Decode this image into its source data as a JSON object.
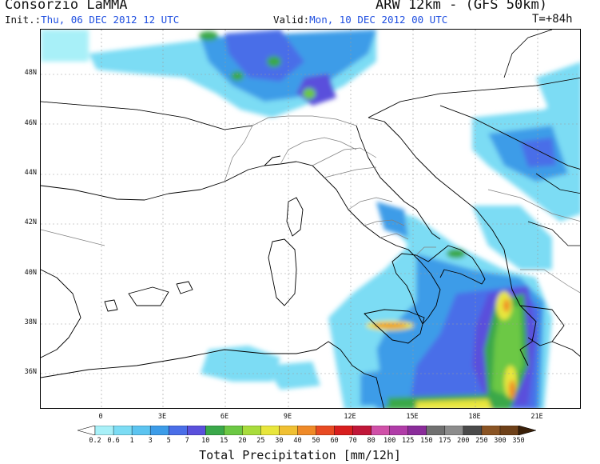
{
  "header": {
    "title_left": "Consorzio LaMMA",
    "title_right": "ARW 12km - (GFS 50km)",
    "init_label": "Init.:",
    "init_value": "Thu, 06 DEC 2012  12 UTC",
    "valid_label": "Valid:",
    "valid_value": "Mon, 10 DEC 2012  00 UTC",
    "forecast_step": "T=+84h"
  },
  "map": {
    "lat_labels": [
      "48N",
      "46N",
      "44N",
      "42N",
      "40N",
      "38N",
      "36N"
    ],
    "lon_labels": [
      "0",
      "3E",
      "6E",
      "9E",
      "12E",
      "15E",
      "18E",
      "21E"
    ],
    "colors": {
      "coast": "#000000",
      "borders": "#808080",
      "grid": "#9a9a9a"
    }
  },
  "colorbar": {
    "title": "Total Precipitation [mm/12h]",
    "labels": [
      "0.2",
      "0.6",
      "1",
      "3",
      "5",
      "7",
      "10",
      "15",
      "20",
      "25",
      "30",
      "40",
      "50",
      "60",
      "70",
      "80",
      "100",
      "125",
      "150",
      "175",
      "200",
      "250",
      "300",
      "350"
    ],
    "colors": [
      "#a8f0f8",
      "#7cdcf4",
      "#5cc4f0",
      "#3c9ce8",
      "#4a6ee8",
      "#5a50dc",
      "#3aa84a",
      "#6cc844",
      "#a8dc3c",
      "#e8e63c",
      "#f0c032",
      "#ef8a28",
      "#e84a22",
      "#d81e1e",
      "#c01638",
      "#d050a8",
      "#b03ca8",
      "#8a2c9a",
      "#707070",
      "#8c8c8c",
      "#4a4a4a",
      "#8a5424",
      "#6e4018",
      "#4e2c10",
      "#3a2008"
    ]
  }
}
